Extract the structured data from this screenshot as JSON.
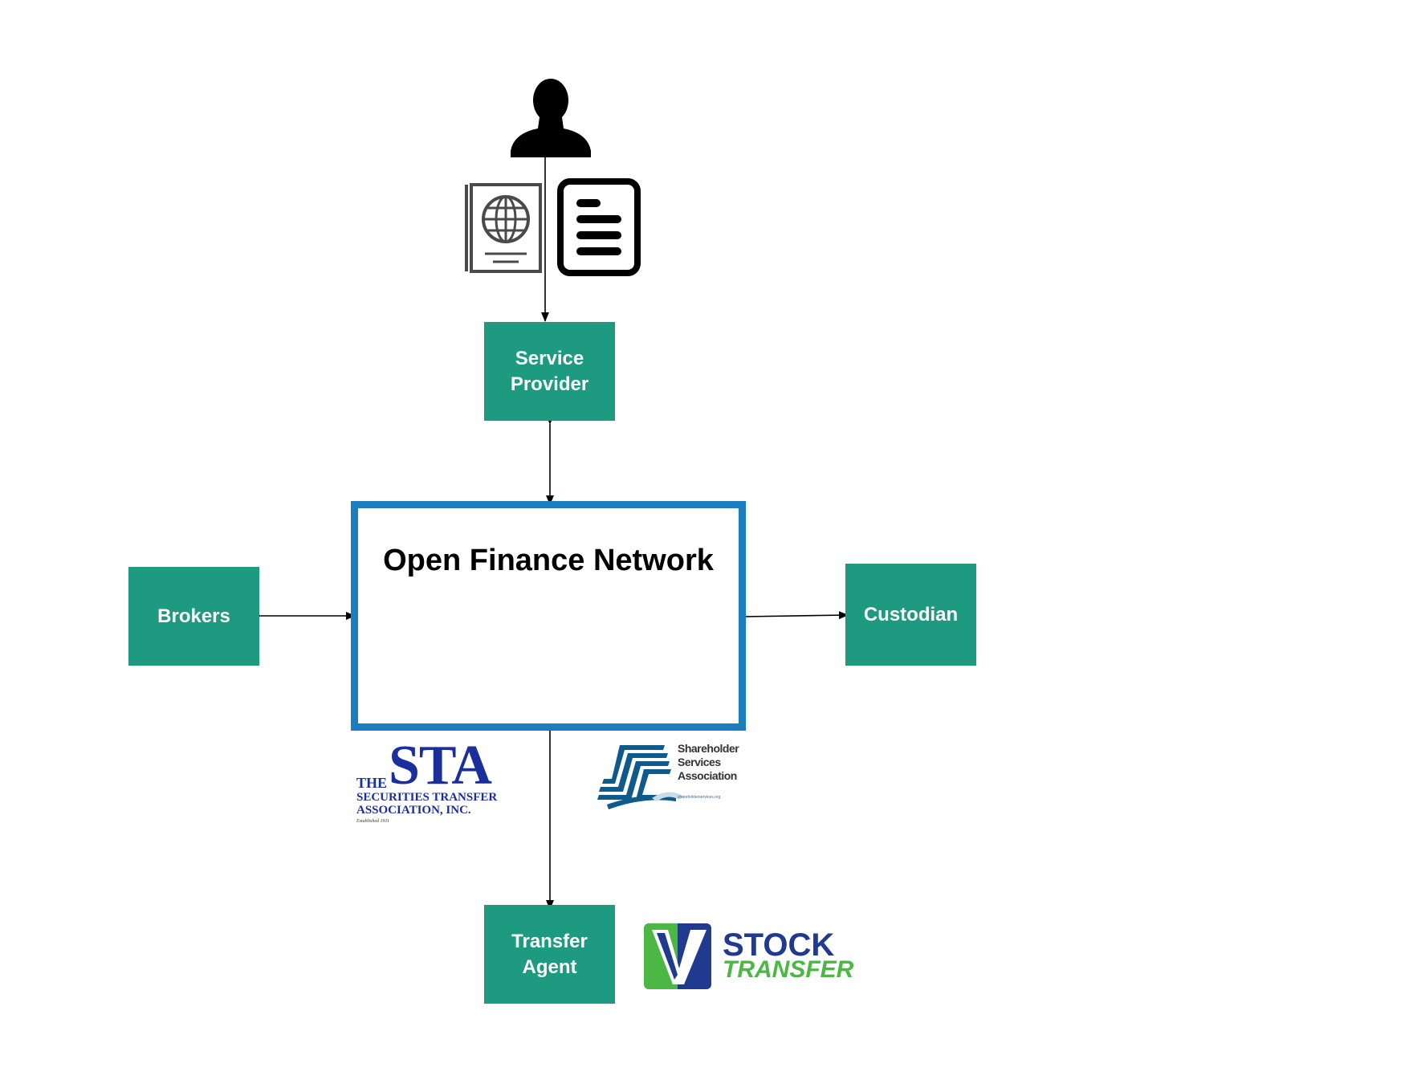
{
  "network": {
    "title": "Open Finance Network"
  },
  "nodes": {
    "service_provider": {
      "line1": "Service",
      "line2": "Provider"
    },
    "brokers": {
      "label": "Brokers"
    },
    "custodian": {
      "label": "Custodian"
    },
    "transfer_agent": {
      "line1": "Transfer",
      "line2": "Agent"
    }
  },
  "icons": [
    "user-icon",
    "passport-icon",
    "document-icon"
  ],
  "logos": {
    "sta": {
      "the": "THE",
      "mark": "STA",
      "line1": "SECURITIES TRANSFER",
      "line2": "ASSOCIATION, INC.",
      "est": "Established 1911"
    },
    "ssa": {
      "line1": "Shareholder",
      "line2": "Services",
      "line3": "Association",
      "url": "shareholderservices.org"
    },
    "stock_transfer": {
      "line1": "STOCK",
      "line2": "TRANSFER"
    }
  },
  "colors": {
    "node_fill": "#1e9a80",
    "network_border": "#1a7dbf",
    "sta_blue": "#1a2f9c",
    "st_green": "#4bb843"
  }
}
